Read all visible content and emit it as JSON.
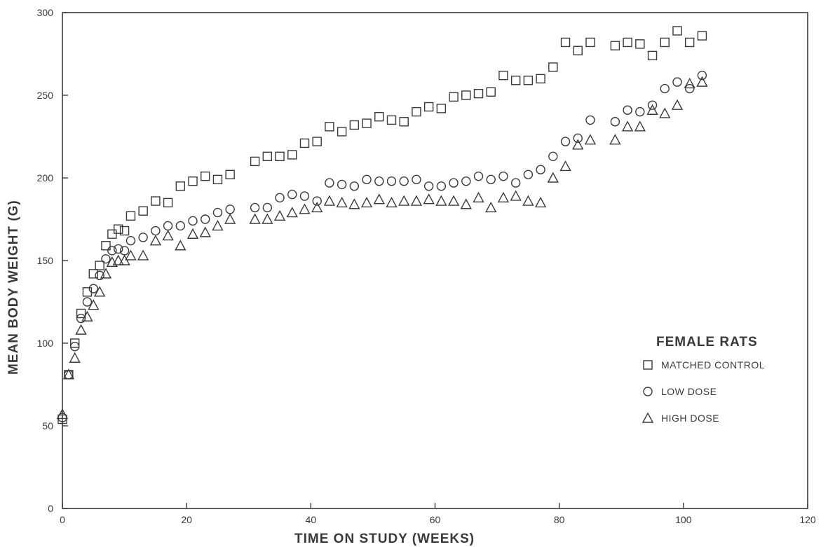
{
  "chart_data": {
    "type": "scatter",
    "title": "",
    "xlabel": "TIME ON STUDY (WEEKS)",
    "ylabel": "MEAN BODY WEIGHT (G)",
    "xlim": [
      0,
      120
    ],
    "ylim": [
      0,
      300
    ],
    "x_ticks": [
      0,
      20,
      40,
      60,
      80,
      100,
      120
    ],
    "y_ticks": [
      0,
      50,
      100,
      150,
      200,
      250,
      300
    ],
    "grid": false,
    "legend": {
      "title": "FEMALE RATS",
      "placement": "right",
      "entries": [
        "MATCHED CONTROL",
        "LOW DOSE",
        "HIGH DOSE"
      ]
    },
    "series": [
      {
        "name": "MATCHED CONTROL",
        "marker": "square",
        "points": [
          [
            0,
            54
          ],
          [
            1,
            81
          ],
          [
            2,
            100
          ],
          [
            3,
            118
          ],
          [
            4,
            131
          ],
          [
            5,
            142
          ],
          [
            6,
            147
          ],
          [
            7,
            159
          ],
          [
            8,
            166
          ],
          [
            9,
            169
          ],
          [
            10,
            168
          ],
          [
            11,
            177
          ],
          [
            13,
            180
          ],
          [
            15,
            186
          ],
          [
            17,
            185
          ],
          [
            19,
            195
          ],
          [
            21,
            198
          ],
          [
            23,
            201
          ],
          [
            25,
            199
          ],
          [
            27,
            202
          ],
          [
            31,
            210
          ],
          [
            33,
            213
          ],
          [
            35,
            213
          ],
          [
            37,
            214
          ],
          [
            39,
            221
          ],
          [
            41,
            222
          ],
          [
            43,
            231
          ],
          [
            45,
            228
          ],
          [
            47,
            232
          ],
          [
            49,
            233
          ],
          [
            51,
            237
          ],
          [
            53,
            235
          ],
          [
            55,
            234
          ],
          [
            57,
            240
          ],
          [
            59,
            243
          ],
          [
            61,
            242
          ],
          [
            63,
            249
          ],
          [
            65,
            250
          ],
          [
            67,
            251
          ],
          [
            69,
            252
          ],
          [
            71,
            262
          ],
          [
            73,
            259
          ],
          [
            75,
            259
          ],
          [
            77,
            260
          ],
          [
            79,
            267
          ],
          [
            81,
            282
          ],
          [
            83,
            277
          ],
          [
            85,
            282
          ],
          [
            89,
            280
          ],
          [
            91,
            282
          ],
          [
            93,
            281
          ],
          [
            95,
            274
          ],
          [
            97,
            282
          ],
          [
            99,
            289
          ],
          [
            101,
            282
          ],
          [
            103,
            286
          ]
        ]
      },
      {
        "name": "LOW DOSE",
        "marker": "circle",
        "points": [
          [
            0,
            55
          ],
          [
            1,
            81
          ],
          [
            2,
            98
          ],
          [
            3,
            115
          ],
          [
            4,
            125
          ],
          [
            5,
            133
          ],
          [
            6,
            141
          ],
          [
            7,
            151
          ],
          [
            8,
            156
          ],
          [
            9,
            157
          ],
          [
            10,
            156
          ],
          [
            11,
            162
          ],
          [
            13,
            164
          ],
          [
            15,
            168
          ],
          [
            17,
            171
          ],
          [
            19,
            171
          ],
          [
            21,
            174
          ],
          [
            23,
            175
          ],
          [
            25,
            179
          ],
          [
            27,
            181
          ],
          [
            31,
            182
          ],
          [
            33,
            182
          ],
          [
            35,
            188
          ],
          [
            37,
            190
          ],
          [
            39,
            189
          ],
          [
            41,
            186
          ],
          [
            43,
            197
          ],
          [
            45,
            196
          ],
          [
            47,
            195
          ],
          [
            49,
            199
          ],
          [
            51,
            198
          ],
          [
            53,
            198
          ],
          [
            55,
            198
          ],
          [
            57,
            199
          ],
          [
            59,
            195
          ],
          [
            61,
            195
          ],
          [
            63,
            197
          ],
          [
            65,
            198
          ],
          [
            67,
            201
          ],
          [
            69,
            199
          ],
          [
            71,
            201
          ],
          [
            73,
            197
          ],
          [
            75,
            202
          ],
          [
            77,
            205
          ],
          [
            79,
            213
          ],
          [
            81,
            222
          ],
          [
            83,
            224
          ],
          [
            85,
            235
          ],
          [
            89,
            234
          ],
          [
            91,
            241
          ],
          [
            93,
            240
          ],
          [
            95,
            244
          ],
          [
            97,
            254
          ],
          [
            99,
            258
          ],
          [
            101,
            254
          ],
          [
            103,
            262
          ]
        ]
      },
      {
        "name": "HIGH DOSE",
        "marker": "triangle",
        "points": [
          [
            0,
            57
          ],
          [
            1,
            81
          ],
          [
            2,
            91
          ],
          [
            3,
            108
          ],
          [
            4,
            116
          ],
          [
            5,
            123
          ],
          [
            6,
            131
          ],
          [
            7,
            142
          ],
          [
            8,
            149
          ],
          [
            9,
            150
          ],
          [
            10,
            150
          ],
          [
            11,
            153
          ],
          [
            13,
            153
          ],
          [
            15,
            162
          ],
          [
            17,
            165
          ],
          [
            19,
            159
          ],
          [
            21,
            166
          ],
          [
            23,
            167
          ],
          [
            25,
            171
          ],
          [
            27,
            175
          ],
          [
            31,
            175
          ],
          [
            33,
            175
          ],
          [
            35,
            177
          ],
          [
            37,
            179
          ],
          [
            39,
            181
          ],
          [
            41,
            182
          ],
          [
            43,
            186
          ],
          [
            45,
            185
          ],
          [
            47,
            184
          ],
          [
            49,
            185
          ],
          [
            51,
            187
          ],
          [
            53,
            185
          ],
          [
            55,
            186
          ],
          [
            57,
            186
          ],
          [
            59,
            187
          ],
          [
            61,
            186
          ],
          [
            63,
            186
          ],
          [
            65,
            184
          ],
          [
            67,
            188
          ],
          [
            69,
            182
          ],
          [
            71,
            188
          ],
          [
            73,
            189
          ],
          [
            75,
            186
          ],
          [
            77,
            185
          ],
          [
            79,
            200
          ],
          [
            81,
            207
          ],
          [
            83,
            220
          ],
          [
            85,
            223
          ],
          [
            89,
            223
          ],
          [
            91,
            231
          ],
          [
            93,
            231
          ],
          [
            95,
            241
          ],
          [
            97,
            239
          ],
          [
            99,
            244
          ],
          [
            101,
            257
          ],
          [
            103,
            258
          ]
        ]
      }
    ]
  }
}
